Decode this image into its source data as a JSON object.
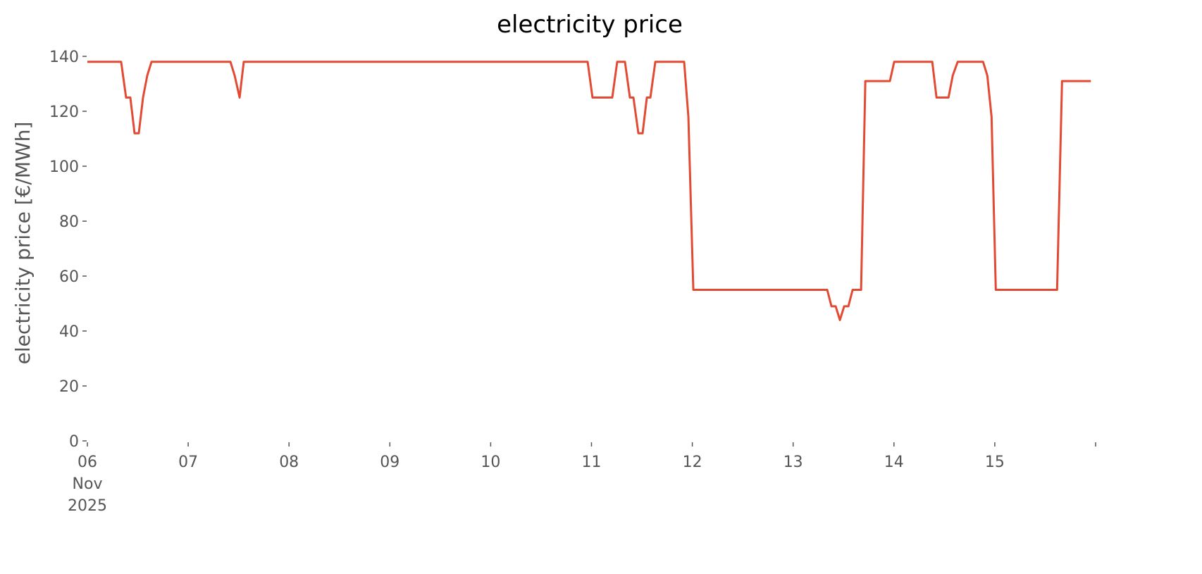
{
  "chart_data": {
    "type": "line",
    "title": "electricity price",
    "y_label": "electricity price [€/MWh]",
    "x": [
      6.0,
      6.335,
      6.384,
      6.426,
      6.468,
      6.51,
      6.552,
      6.594,
      6.636,
      7.419,
      7.461,
      7.51,
      7.551,
      10.962,
      11.01,
      11.206,
      11.255,
      11.332,
      11.381,
      11.416,
      11.465,
      11.507,
      11.549,
      11.584,
      11.633,
      11.919,
      11.961,
      12.01,
      13.338,
      13.38,
      13.422,
      13.464,
      13.506,
      13.548,
      13.59,
      13.674,
      13.716,
      13.96,
      14.002,
      14.38,
      14.422,
      14.541,
      14.583,
      14.632,
      14.884,
      14.926,
      14.968,
      15.01,
      15.618,
      15.667,
      15.953
    ],
    "series": [
      {
        "name": "electricity price",
        "color": "#e24a33",
        "values": [
          138,
          138,
          125,
          125,
          112,
          112,
          125,
          133,
          138,
          138,
          133,
          125,
          138,
          138,
          125,
          125,
          138,
          138,
          125,
          125,
          112,
          112,
          125,
          125,
          138,
          138,
          118,
          55,
          55,
          49,
          49,
          44,
          49,
          49,
          55,
          55,
          131,
          131,
          138,
          138,
          125,
          125,
          133,
          138,
          138,
          133,
          118,
          55,
          55,
          131,
          131
        ]
      }
    ],
    "xlim": [
      6,
      16
    ],
    "xticks": [
      {
        "value": 6,
        "label": "06\nNov\n2025"
      },
      {
        "value": 7,
        "label": "07"
      },
      {
        "value": 8,
        "label": "08"
      },
      {
        "value": 9,
        "label": "09"
      },
      {
        "value": 10,
        "label": "10"
      },
      {
        "value": 11,
        "label": "11"
      },
      {
        "value": 12,
        "label": "12"
      },
      {
        "value": 13,
        "label": "13"
      },
      {
        "value": 14,
        "label": "14"
      },
      {
        "value": 15,
        "label": "15"
      },
      {
        "value": 16,
        "label": null
      }
    ],
    "ylim": [
      0,
      140
    ],
    "yticks": [
      0,
      20,
      40,
      60,
      80,
      100,
      120,
      140
    ],
    "grid": false
  }
}
